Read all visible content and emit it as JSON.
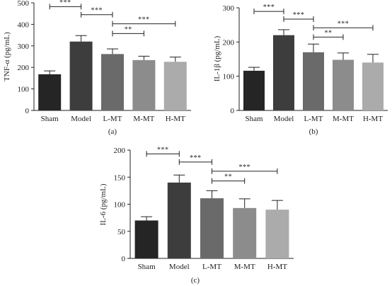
{
  "figure": {
    "panels": [
      {
        "label": "(a)",
        "ylabel": "TNF-α (pg/mL)"
      },
      {
        "label": "(b)",
        "ylabel": "IL-1β (pg/mL)"
      },
      {
        "label": "(c)",
        "ylabel": "IL-6 (pg/mL)"
      }
    ]
  },
  "chart_data": [
    {
      "type": "bar",
      "title": "",
      "panel_label": "(a)",
      "xlabel": "",
      "ylabel": "TNF-α (pg/mL)",
      "categories": [
        "Sham",
        "Model",
        "L-MT",
        "M-MT",
        "H-MT"
      ],
      "values": [
        168,
        320,
        262,
        234,
        226
      ],
      "errors": [
        16,
        28,
        24,
        18,
        22
      ],
      "ylim": [
        0,
        500
      ],
      "yticks": [
        0,
        100,
        200,
        300,
        400,
        500
      ],
      "bar_colors": [
        "#252525",
        "#3d3d3d",
        "#6a6a6a",
        "#8c8c8c",
        "#ababab"
      ],
      "significance": [
        {
          "from": 0,
          "to": 1,
          "label": "***"
        },
        {
          "from": 1,
          "to": 2,
          "label": "***"
        },
        {
          "from": 2,
          "to": 3,
          "label": "**"
        },
        {
          "from": 2,
          "to": 4,
          "label": "***"
        }
      ]
    },
    {
      "type": "bar",
      "title": "",
      "panel_label": "(b)",
      "xlabel": "",
      "ylabel": "IL-1β (pg/mL)",
      "categories": [
        "Sham",
        "Model",
        "L-MT",
        "M-MT",
        "H-MT"
      ],
      "values": [
        116,
        220,
        170,
        148,
        140
      ],
      "errors": [
        10,
        16,
        24,
        20,
        24
      ],
      "ylim": [
        0,
        300
      ],
      "yticks": [
        0,
        100,
        200,
        300
      ],
      "bar_colors": [
        "#252525",
        "#3d3d3d",
        "#6a6a6a",
        "#8c8c8c",
        "#ababab"
      ],
      "significance": [
        {
          "from": 0,
          "to": 1,
          "label": "***"
        },
        {
          "from": 1,
          "to": 2,
          "label": "***"
        },
        {
          "from": 2,
          "to": 3,
          "label": "**"
        },
        {
          "from": 2,
          "to": 4,
          "label": "***"
        }
      ]
    },
    {
      "type": "bar",
      "title": "",
      "panel_label": "(c)",
      "xlabel": "",
      "ylabel": "IL-6 (pg/mL)",
      "categories": [
        "Sham",
        "Model",
        "L-MT",
        "M-MT",
        "H-MT"
      ],
      "values": [
        70,
        140,
        111,
        93,
        90
      ],
      "errors": [
        7,
        14,
        14,
        17,
        17
      ],
      "ylim": [
        0,
        200
      ],
      "yticks": [
        0,
        50,
        100,
        150,
        200
      ],
      "bar_colors": [
        "#252525",
        "#3d3d3d",
        "#6a6a6a",
        "#8c8c8c",
        "#ababab"
      ],
      "significance": [
        {
          "from": 0,
          "to": 1,
          "label": "***"
        },
        {
          "from": 1,
          "to": 2,
          "label": "***"
        },
        {
          "from": 2,
          "to": 3,
          "label": "**"
        },
        {
          "from": 2,
          "to": 4,
          "label": "***"
        }
      ]
    }
  ]
}
